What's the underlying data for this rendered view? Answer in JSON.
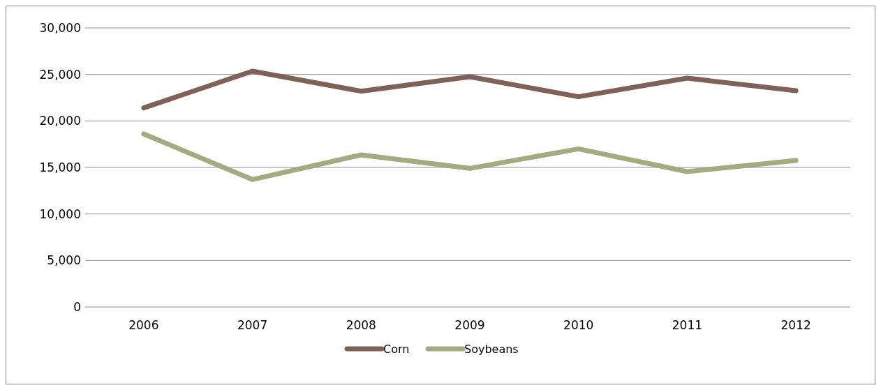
{
  "chart_data": {
    "type": "line",
    "categories": [
      "2006",
      "2007",
      "2008",
      "2009",
      "2010",
      "2011",
      "2012"
    ],
    "series": [
      {
        "name": "Corn",
        "color": "#7f6157",
        "values": [
          21400,
          25350,
          23200,
          24750,
          22600,
          24600,
          23250
        ]
      },
      {
        "name": "Soybeans",
        "color": "#a4ab80",
        "values": [
          18600,
          13700,
          16350,
          14900,
          17000,
          14550,
          15750
        ]
      }
    ],
    "ylim": [
      0,
      30000
    ],
    "yticks": [
      {
        "value": 0,
        "label": "0"
      },
      {
        "value": 5000,
        "label": "5,000"
      },
      {
        "value": 10000,
        "label": "10,000"
      },
      {
        "value": 15000,
        "label": "15,000"
      },
      {
        "value": 20000,
        "label": "20,000"
      },
      {
        "value": 25000,
        "label": "25,000"
      },
      {
        "value": 30000,
        "label": "30,000"
      }
    ],
    "grid": "y",
    "legend": "bottom",
    "marker": "none",
    "line_style": "solid"
  }
}
